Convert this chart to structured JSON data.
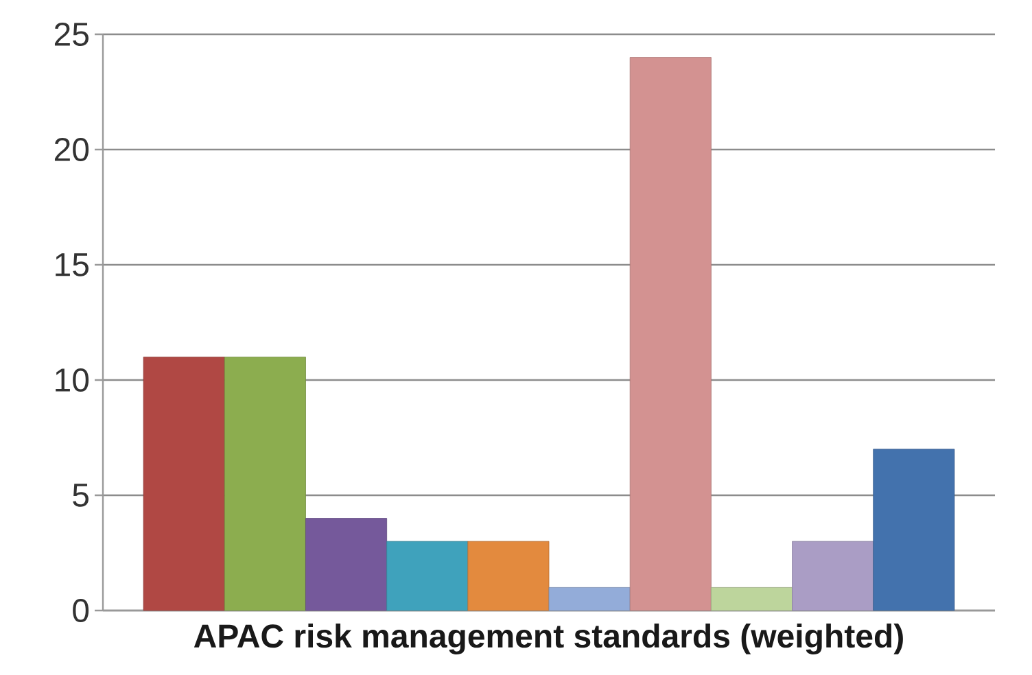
{
  "chart_data": {
    "type": "bar",
    "categories": [
      "APAC risk management standards (weighted)"
    ],
    "series": [
      {
        "color": "#b04844",
        "values": [
          11
        ]
      },
      {
        "color": "#8cad4f",
        "values": [
          11
        ]
      },
      {
        "color": "#75599b",
        "values": [
          4
        ]
      },
      {
        "color": "#3fa2bc",
        "values": [
          3
        ]
      },
      {
        "color": "#e38a3e",
        "values": [
          3
        ]
      },
      {
        "color": "#93acd9",
        "values": [
          1
        ]
      },
      {
        "color": "#d39291",
        "values": [
          24
        ]
      },
      {
        "color": "#bdd59c",
        "values": [
          1
        ]
      },
      {
        "color": "#aa9dc5",
        "values": [
          3
        ]
      },
      {
        "color": "#4372ad",
        "values": [
          7
        ]
      }
    ],
    "ylim": [
      0,
      25
    ],
    "yticks": [
      0,
      5,
      10,
      15,
      20,
      25
    ],
    "grid": "y"
  }
}
